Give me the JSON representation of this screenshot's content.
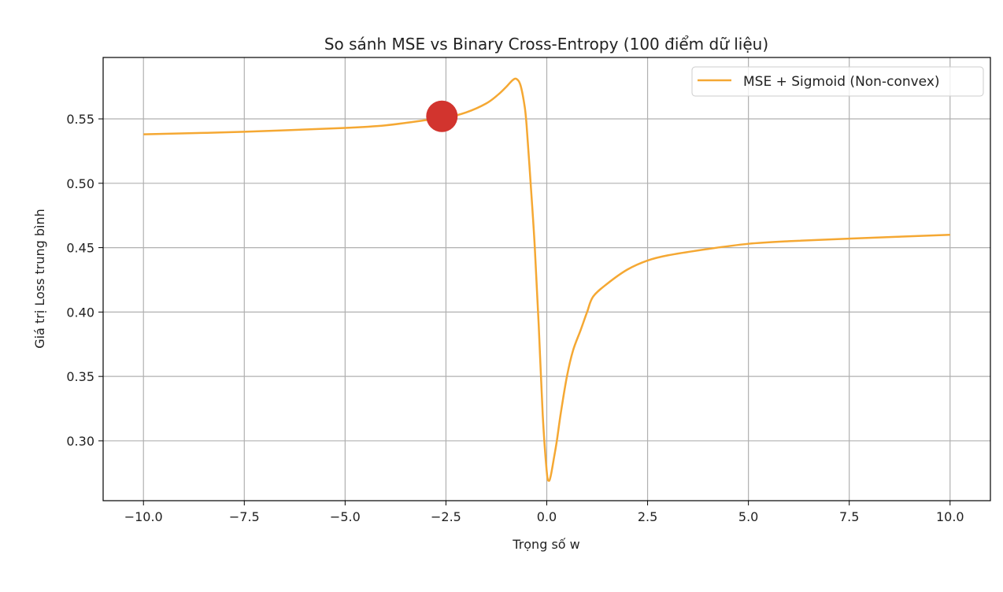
{
  "chart_data": {
    "type": "line",
    "title": "So sánh MSE vs Binary Cross-Entropy (100 điểm dữ liệu)",
    "xlabel": "Trọng số w",
    "ylabel": "Giá trị Loss trung bình",
    "xlim": [
      -11.0,
      11.0
    ],
    "ylim": [
      0.2535,
      0.5977
    ],
    "xticks": [
      -10,
      -7.5,
      -5,
      -2.5,
      0,
      2.5,
      5,
      7.5,
      10
    ],
    "xtick_labels": [
      "−10.0",
      "−7.5",
      "−5.0",
      "−2.5",
      "0.0",
      "2.5",
      "5.0",
      "7.5",
      "10.0"
    ],
    "yticks": [
      0.3,
      0.35,
      0.4,
      0.45,
      0.5,
      0.55
    ],
    "ytick_labels": [
      "0.30",
      "0.35",
      "0.40",
      "0.45",
      "0.50",
      "0.55"
    ],
    "grid": true,
    "legend_position": "top-right",
    "series": [
      {
        "name": "MSE + Sigmoid (Non-convex)",
        "color": "#f5a833",
        "x": [
          -10,
          -7.5,
          -5,
          -4,
          -3,
          -2.5,
          -2,
          -1.5,
          -1.2,
          -1,
          -0.85,
          -0.75,
          -0.65,
          -0.55,
          -0.5,
          -0.4,
          -0.3,
          -0.2,
          -0.1,
          0,
          0.05,
          0.1,
          0.18,
          0.25,
          0.35,
          0.5,
          0.65,
          0.84,
          1.0,
          1.15,
          1.5,
          2,
          2.5,
          3,
          4,
          5,
          6,
          7.5,
          10
        ],
        "y": [
          0.538,
          0.54,
          0.543,
          0.545,
          0.549,
          0.551,
          0.555,
          0.562,
          0.569,
          0.575,
          0.58,
          0.581,
          0.576,
          0.56,
          0.545,
          0.5,
          0.452,
          0.39,
          0.32,
          0.276,
          0.269,
          0.273,
          0.287,
          0.3,
          0.322,
          0.35,
          0.37,
          0.386,
          0.4,
          0.412,
          0.422,
          0.433,
          0.44,
          0.444,
          0.449,
          0.453,
          0.455,
          0.457,
          0.46
        ]
      }
    ],
    "marker": {
      "x": -2.6,
      "y": 0.552,
      "color": "#d2342e"
    }
  }
}
